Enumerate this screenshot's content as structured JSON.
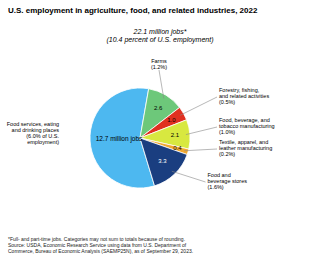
{
  "chart_data": {
    "type": "pie",
    "title": "U.S. employment in agriculture, food, and related industries, 2022",
    "subtitle": [
      "22.1 million jobs*",
      "(10.4 percent of U.S. employment)"
    ],
    "categories": [
      "Food services, eating\nand drinking places\n(6.0% of U.S.\nemployment)",
      "Farms\n(1.2%)",
      "Forestry, fishing,\nand related activities\n(0.5%)",
      "Food, beverage, and\ntobacco manufacturing\n(1.0%)",
      "Textile, apparel, and\nleather manufacturing\n(0.2%)",
      "Food and\nbeverage stores\n(1.6%)"
    ],
    "values": [
      12.7,
      2.6,
      1.0,
      2.1,
      0.4,
      3.3
    ],
    "colors": [
      "#4DB8F0",
      "#6DC87A",
      "#E03020",
      "#D8E840",
      "#F0A830",
      "#1A3E80"
    ],
    "data_labels": true,
    "value_labels": [
      "12.7 million jobs",
      "2.6",
      "1.0",
      "2.1",
      "0.4",
      "3.3"
    ],
    "footer": [
      "*Full- and part-time jobs. Categories may not sum to totals because of rounding.",
      "Source: USDA, Economic Research Service using data from U.S. Department of",
      "Commerce, Bureau of Economic Analysis (SAEMP25N), as of September 29, 2023."
    ]
  }
}
